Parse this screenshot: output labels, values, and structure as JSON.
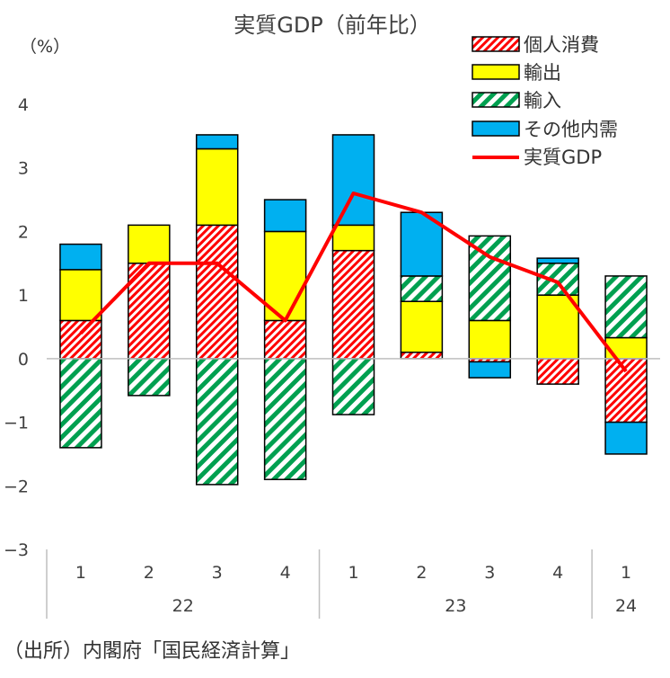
{
  "chart_data": {
    "type": "bar",
    "stacked": true,
    "title": "実質GDP（前年比）",
    "unit_label": "（%）",
    "y_ticks": [
      "4",
      "3",
      "2",
      "1",
      "0",
      "−1",
      "−2",
      "−3"
    ],
    "ylim": [
      -3,
      4
    ],
    "categories": [
      "1",
      "2",
      "3",
      "4",
      "1",
      "2",
      "3",
      "4",
      "1"
    ],
    "groups": [
      {
        "label": "22",
        "size": 4
      },
      {
        "label": "23",
        "size": 4
      },
      {
        "label": "24",
        "size": 1
      }
    ],
    "series": [
      {
        "name": "個人消費",
        "values": [
          0.6,
          1.5,
          2.1,
          0.6,
          1.7,
          0.1,
          -0.05,
          -0.4,
          -1.0
        ]
      },
      {
        "name": "輸出",
        "values": [
          0.8,
          0.6,
          1.2,
          1.4,
          0.4,
          0.8,
          0.6,
          1.0,
          0.33
        ]
      },
      {
        "name": "輸入",
        "values": [
          -1.4,
          -0.58,
          -1.98,
          -1.9,
          -0.88,
          0.4,
          1.33,
          0.5,
          0.97
        ]
      },
      {
        "name": "その他内需",
        "values": [
          0.4,
          0.0,
          0.22,
          0.5,
          1.42,
          1.0,
          0.0,
          0.08,
          0.0
        ]
      }
    ],
    "negative_extra": [
      0,
      0,
      0,
      0,
      0,
      0,
      -0.25,
      0,
      -0.5
    ],
    "line": {
      "name": "実質GDP",
      "values": [
        0.4,
        1.5,
        1.5,
        0.6,
        2.6,
        2.3,
        1.6,
        1.2,
        -0.2
      ]
    },
    "legend_position": "top-right",
    "colors": {
      "consumption": "#ff0000",
      "exports": "#ffff00",
      "imports": "#00a050",
      "other": "#00b0f0",
      "gdp_line": "#ff0000"
    }
  },
  "source": "（出所）内閣府「国民経済計算」"
}
